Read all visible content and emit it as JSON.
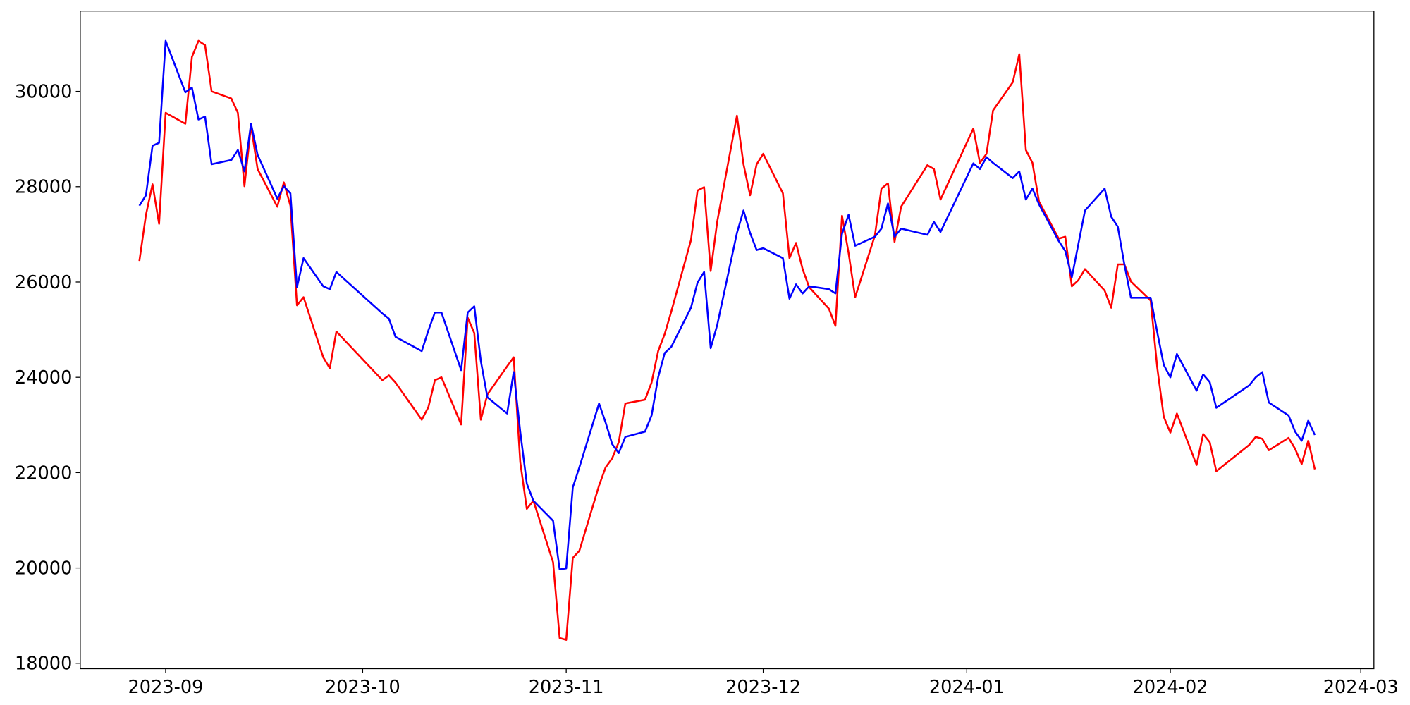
{
  "chart_data": {
    "type": "line",
    "x": [
      19597,
      19598,
      19599,
      19600,
      19601,
      19604,
      19605,
      19606,
      19607,
      19608,
      19611,
      19612,
      19613,
      19614,
      19615,
      19618,
      19619,
      19620,
      19621,
      19622,
      19625,
      19626,
      19627,
      19634,
      19635,
      19636,
      19640,
      19641,
      19642,
      19643,
      19646,
      19647,
      19648,
      19649,
      19650,
      19653,
      19654,
      19655,
      19656,
      19657,
      19660,
      19661,
      19662,
      19663,
      19664,
      19667,
      19668,
      19669,
      19670,
      19671,
      19674,
      19675,
      19676,
      19677,
      19678,
      19681,
      19682,
      19683,
      19684,
      19685,
      19688,
      19689,
      19690,
      19691,
      19692,
      19695,
      19696,
      19697,
      19698,
      19699,
      19702,
      19703,
      19704,
      19705,
      19706,
      19709,
      19710,
      19711,
      19712,
      19713,
      19717,
      19718,
      19719,
      19724,
      19725,
      19726,
      19727,
      19730,
      19731,
      19732,
      19733,
      19734,
      19737,
      19738,
      19739,
      19740,
      19741,
      19744,
      19745,
      19746,
      19747,
      19748,
      19751,
      19752,
      19753,
      19754,
      19755,
      19758,
      19759,
      19760,
      19761,
      19766,
      19767,
      19768,
      19769,
      19772,
      19773,
      19774,
      19775,
      19776
    ],
    "series": [
      {
        "color": "#ff0000",
        "values": [
          26440,
          27410,
          28050,
          27220,
          29550,
          29320,
          30720,
          31060,
          30970,
          30000,
          29850,
          29550,
          28010,
          29280,
          28370,
          27580,
          28090,
          27600,
          25510,
          25680,
          24420,
          24190,
          24960,
          23940,
          24040,
          23890,
          23110,
          23370,
          23940,
          24000,
          23010,
          25250,
          24930,
          23110,
          23640,
          24230,
          24420,
          22220,
          21240,
          21410,
          20120,
          18530,
          18490,
          20210,
          20360,
          21730,
          22110,
          22300,
          22640,
          23450,
          23530,
          23890,
          24550,
          24910,
          25380,
          26880,
          27920,
          27990,
          26230,
          27270,
          29490,
          28470,
          27820,
          28470,
          28690,
          27860,
          26500,
          26820,
          26270,
          25890,
          25440,
          25080,
          27390,
          26610,
          25680,
          26970,
          27960,
          28070,
          26840,
          27580,
          28450,
          28370,
          27730,
          29220,
          28500,
          28690,
          29600,
          30190,
          30780,
          28770,
          28500,
          27690,
          26910,
          26950,
          25910,
          26040,
          26270,
          25820,
          25460,
          26370,
          26370,
          26010,
          25610,
          24210,
          23170,
          22840,
          23240,
          22160,
          22810,
          22640,
          22030,
          22580,
          22750,
          22710,
          22470,
          22730,
          22500,
          22180,
          22670,
          22070
        ]
      },
      {
        "color": "#0000ff",
        "values": [
          27600,
          27820,
          28860,
          28920,
          31060,
          29980,
          30080,
          29410,
          29470,
          28470,
          28560,
          28770,
          28320,
          29320,
          28670,
          27750,
          28010,
          27860,
          25890,
          26500,
          25910,
          25850,
          26210,
          25340,
          25230,
          24850,
          24550,
          24980,
          25360,
          25360,
          24150,
          25360,
          25490,
          24340,
          23580,
          23240,
          24110,
          22860,
          21770,
          21410,
          20990,
          19970,
          19990,
          21690,
          22110,
          23450,
          23050,
          22600,
          22410,
          22750,
          22860,
          23200,
          24000,
          24510,
          24640,
          25460,
          25990,
          26210,
          24610,
          25100,
          27030,
          27500,
          27030,
          26670,
          26710,
          26500,
          25650,
          25950,
          25760,
          25910,
          25850,
          25760,
          27010,
          27410,
          26760,
          26950,
          27120,
          27650,
          26950,
          27120,
          26990,
          27260,
          27050,
          28490,
          28370,
          28620,
          28500,
          28180,
          28320,
          27730,
          27960,
          27630,
          26860,
          26650,
          26100,
          26800,
          27500,
          27960,
          27370,
          27160,
          26370,
          25670,
          25670,
          24950,
          24260,
          24000,
          24490,
          23720,
          24060,
          23900,
          23360,
          23830,
          24000,
          24110,
          23470,
          23200,
          22860,
          22670,
          23090,
          22790
        ]
      }
    ],
    "xlim": [
      19588,
      19785
    ],
    "xticks": [
      {
        "value": 19601,
        "label": "2023-09"
      },
      {
        "value": 19631,
        "label": "2023-10"
      },
      {
        "value": 19662,
        "label": "2023-11"
      },
      {
        "value": 19692,
        "label": "2023-12"
      },
      {
        "value": 19723,
        "label": "2024-01"
      },
      {
        "value": 19754,
        "label": "2024-02"
      },
      {
        "value": 19783,
        "label": "2024-03"
      }
    ],
    "ylim": [
      17886,
      31685
    ],
    "yticks": [
      18000,
      20000,
      22000,
      24000,
      26000,
      28000,
      30000
    ],
    "grid": false
  }
}
